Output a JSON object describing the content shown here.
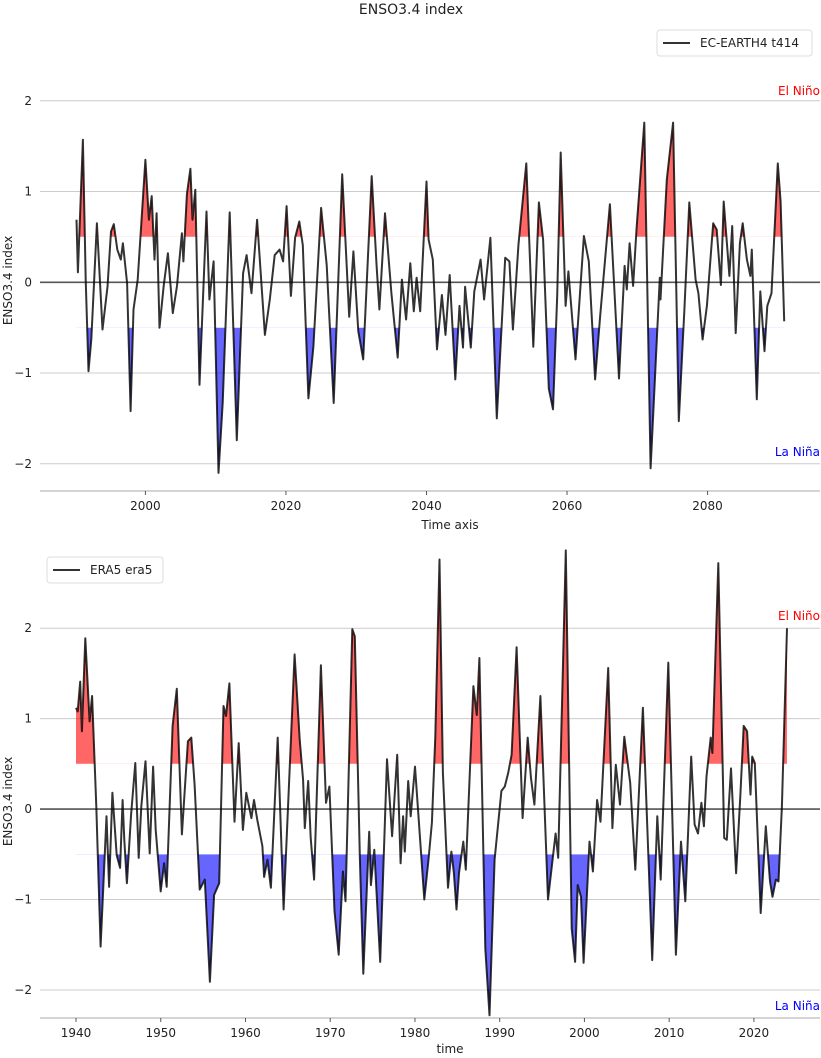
{
  "title": "ENSO3.4 index",
  "threshold_colors": {
    "el_nino": "#ff0000",
    "la_nina": "#0000ff",
    "line": "#333333",
    "zero_line": "#555555",
    "grid": "#cccccc"
  },
  "chart_data": [
    {
      "type": "line",
      "fill_between": {
        "upper_threshold": 0.5,
        "lower_threshold": -0.5
      },
      "xlabel": "Time axis",
      "ylabel": "ENSO3.4 index",
      "xlim": [
        1985,
        2096
      ],
      "ylim": [
        -2.3,
        2.78
      ],
      "xticks": [
        2000,
        2020,
        2040,
        2060,
        2080
      ],
      "yticks": [
        -2,
        -1,
        0,
        1,
        2
      ],
      "yticklabels": [
        "−2",
        "−1",
        "0",
        "1",
        "2"
      ],
      "grid": true,
      "legend": "top-right",
      "annotations": {
        "el_nino": "El Niño",
        "la_nina": "La Niña"
      },
      "series": [
        {
          "name": "EC-EARTH4 t414",
          "x": [
            1990.2,
            1990.4,
            1991.1,
            1991.5,
            1991.9,
            1992.3,
            1993.1,
            1993.9,
            1994.6,
            1995.1,
            1995.5,
            1996.0,
            1996.5,
            1996.8,
            1997.4,
            1997.9,
            1998.3,
            1998.9,
            2000.0,
            2000.5,
            2000.9,
            2001.3,
            2001.6,
            2002.0,
            2002.6,
            2003.2,
            2003.9,
            2004.5,
            2005.2,
            2005.4,
            2005.9,
            2006.4,
            2006.7,
            2007.1,
            2007.7,
            2008.7,
            2009.1,
            2009.7,
            2010.4,
            2011.0,
            2012.0,
            2013.0,
            2013.9,
            2014.4,
            2015.1,
            2015.9,
            2017.0,
            2017.7,
            2018.4,
            2019.1,
            2019.6,
            2020.1,
            2020.7,
            2021.3,
            2021.9,
            2022.4,
            2023.2,
            2023.9,
            2025.0,
            2025.8,
            2026.8,
            2028.0,
            2029.0,
            2029.6,
            2030.3,
            2031.0,
            2032.2,
            2032.9,
            2033.3,
            2034.1,
            2035.0,
            2035.9,
            2036.5,
            2037.1,
            2037.7,
            2038.2,
            2038.6,
            2039.1,
            2040.0,
            2040.3,
            2040.9,
            2041.5,
            2042.2,
            2042.7,
            2043.3,
            2044.1,
            2044.7,
            2045.2,
            2045.5,
            2046.3,
            2046.8,
            2047.7,
            2048.2,
            2049.1,
            2050.0,
            2051.2,
            2051.8,
            2052.3,
            2053.1,
            2054.2,
            2055.2,
            2056.0,
            2056.6,
            2057.4,
            2058.0,
            2058.6,
            2059.1,
            2059.8,
            2060.2,
            2061.2,
            2062.4,
            2063.1,
            2064.0,
            2064.7,
            2066.1,
            2067.4,
            2068.2,
            2068.5,
            2068.9,
            2069.4,
            2069.9,
            2071.0,
            2071.9,
            2073.2,
            2073.3,
            2074.2,
            2075.1,
            2075.9,
            2076.7,
            2077.4,
            2078.3,
            2078.7,
            2079.3,
            2079.9,
            2080.8,
            2081.3,
            2081.9,
            2082.3,
            2083.1,
            2083.5,
            2084.0,
            2084.6,
            2085.0,
            2085.6,
            2086.1,
            2086.3,
            2087.0,
            2087.5,
            2088.1,
            2088.5,
            2089.1,
            2090.0,
            2090.4,
            2090.9
          ],
          "y": [
            0.69,
            0.11,
            1.57,
            0.03,
            -0.98,
            -0.63,
            0.65,
            -0.52,
            -0.05,
            0.56,
            0.64,
            0.36,
            0.25,
            0.43,
            -0.01,
            -1.42,
            -0.3,
            0.03,
            1.35,
            0.69,
            0.95,
            0.25,
            0.76,
            -0.5,
            -0.04,
            0.32,
            -0.34,
            -0.04,
            0.54,
            0.23,
            0.97,
            1.25,
            0.69,
            1.02,
            -1.13,
            0.78,
            -0.19,
            0.23,
            -2.1,
            -1.33,
            0.77,
            -1.74,
            0.1,
            0.3,
            -0.12,
            0.69,
            -0.58,
            -0.19,
            0.3,
            0.36,
            0.23,
            0.84,
            -0.15,
            0.49,
            0.67,
            0.41,
            -1.28,
            -0.71,
            0.82,
            0.19,
            -1.33,
            1.19,
            -0.38,
            0.34,
            -0.54,
            -0.85,
            1.17,
            0.18,
            -0.3,
            0.76,
            -0.12,
            -0.83,
            0.03,
            -0.41,
            0.21,
            -0.32,
            0.05,
            -0.32,
            1.11,
            0.47,
            0.25,
            -0.74,
            -0.14,
            -0.58,
            0.08,
            -1.07,
            -0.26,
            -0.72,
            -0.05,
            -0.72,
            -0.1,
            0.25,
            -0.19,
            0.49,
            -1.5,
            0.27,
            0.23,
            -0.52,
            0.42,
            1.31,
            -0.71,
            0.88,
            0.47,
            -1.17,
            -1.4,
            -0.15,
            1.43,
            -0.26,
            0.12,
            -0.85,
            0.51,
            0.23,
            -1.07,
            -0.38,
            0.86,
            -1.06,
            0.18,
            -0.08,
            0.43,
            -0.04,
            0.6,
            1.76,
            -2.05,
            0.05,
            -0.19,
            1.13,
            1.76,
            -1.53,
            -0.3,
            0.88,
            0.03,
            -0.12,
            -0.63,
            -0.26,
            0.65,
            0.58,
            -0.03,
            0.89,
            0.07,
            0.62,
            -0.56,
            0.43,
            0.65,
            0.25,
            0.07,
            0.36,
            -1.29,
            -0.1,
            -0.76,
            -0.26,
            -0.12,
            1.31,
            0.89,
            -0.43
          ]
        }
      ]
    },
    {
      "type": "line",
      "fill_between": {
        "upper_threshold": 0.5,
        "lower_threshold": -0.5
      },
      "xlabel": "time",
      "ylabel": "ENSO3.4 index",
      "xlim": [
        1935.75,
        2027.8
      ],
      "ylim": [
        -2.31,
        2.92
      ],
      "xticks": [
        1940,
        1950,
        1960,
        1970,
        1980,
        1990,
        2000,
        2010,
        2020
      ],
      "yticks": [
        -2,
        -1,
        0,
        1,
        2
      ],
      "yticklabels": [
        "−2",
        "−1",
        "0",
        "1",
        "2"
      ],
      "grid": true,
      "legend": "top-left",
      "annotations": {
        "el_nino": "El Niño",
        "la_nina": "La Niña"
      },
      "series": [
        {
          "name": "ERA5 era5",
          "x": [
            1940.0,
            1940.2,
            1940.5,
            1940.7,
            1941.1,
            1941.6,
            1941.9,
            1942.4,
            1942.9,
            1943.6,
            1943.9,
            1944.3,
            1944.8,
            1945.2,
            1945.5,
            1945.7,
            1946.0,
            1946.5,
            1947.0,
            1947.4,
            1947.7,
            1948.2,
            1948.7,
            1949.1,
            1949.4,
            1950.0,
            1950.4,
            1950.7,
            1951.4,
            1951.9,
            1952.5,
            1953.2,
            1953.6,
            1954.0,
            1954.6,
            1955.2,
            1955.8,
            1956.3,
            1956.9,
            1957.4,
            1957.7,
            1958.1,
            1958.7,
            1959.2,
            1959.7,
            1960.1,
            1960.7,
            1961.0,
            1961.4,
            1962.0,
            1962.2,
            1962.6,
            1963.0,
            1963.8,
            1964.5,
            1965.8,
            1966.4,
            1966.8,
            1967.0,
            1967.4,
            1967.7,
            1968.1,
            1968.9,
            1969.5,
            1969.9,
            1970.5,
            1971.0,
            1971.5,
            1971.8,
            1972.6,
            1972.9,
            1973.5,
            1973.9,
            1974.6,
            1974.8,
            1975.2,
            1975.9,
            1976.7,
            1977.3,
            1977.9,
            1978.3,
            1978.6,
            1978.8,
            1979.2,
            1979.5,
            1980.0,
            1980.6,
            1981.1,
            1981.6,
            1982.0,
            1982.4,
            1982.9,
            1983.3,
            1983.9,
            1984.3,
            1984.6,
            1984.9,
            1985.2,
            1985.7,
            1986.0,
            1986.9,
            1987.3,
            1987.6,
            1988.3,
            1988.8,
            1989.4,
            1990.2,
            1990.6,
            1991.0,
            1991.4,
            1992.0,
            1992.7,
            1993.3,
            1993.7,
            1994.1,
            1994.8,
            1995.7,
            1996.6,
            1996.9,
            1997.8,
            1998.5,
            1998.9,
            1999.2,
            1999.6,
            1999.9,
            2000.6,
            2001.0,
            2001.5,
            2001.9,
            2002.8,
            2003.3,
            2003.7,
            2004.2,
            2004.7,
            2005.4,
            2006.0,
            2006.9,
            2008.0,
            2008.6,
            2009.0,
            2009.9,
            2010.8,
            2011.4,
            2011.9,
            2012.6,
            2013.0,
            2013.4,
            2013.8,
            2014.1,
            2014.4,
            2014.9,
            2015.1,
            2015.8,
            2016.5,
            2016.8,
            2017.3,
            2017.9,
            2018.4,
            2018.8,
            2019.2,
            2019.6,
            2019.8,
            2020.1,
            2020.8,
            2021.4,
            2021.9,
            2022.2,
            2022.6,
            2022.9,
            2023.3,
            2023.9
          ],
          "y": [
            1.12,
            1.08,
            1.41,
            0.86,
            1.89,
            0.97,
            1.25,
            0.03,
            -1.52,
            -0.08,
            -0.86,
            0.18,
            -0.51,
            -0.65,
            0.1,
            -0.34,
            -0.82,
            -0.06,
            0.51,
            -0.54,
            0.03,
            0.53,
            -0.49,
            0.47,
            -0.23,
            -0.91,
            -0.6,
            -0.86,
            0.92,
            1.33,
            -0.28,
            0.75,
            0.79,
            0.27,
            -0.89,
            -0.78,
            -1.91,
            -0.95,
            -0.82,
            1.14,
            1.03,
            1.39,
            -0.14,
            0.73,
            -0.23,
            0.18,
            -0.1,
            0.1,
            -0.12,
            -0.41,
            -0.75,
            -0.56,
            -0.87,
            0.79,
            -1.11,
            1.71,
            0.77,
            0.32,
            -0.21,
            0.31,
            -0.32,
            -0.78,
            1.59,
            0.07,
            0.25,
            -1.13,
            -1.61,
            -0.69,
            -1.02,
            1.99,
            1.91,
            -0.56,
            -1.82,
            -0.25,
            -0.84,
            -0.45,
            -1.69,
            0.55,
            -0.3,
            0.6,
            -0.6,
            -0.08,
            -0.47,
            0.31,
            -0.08,
            0.47,
            -0.32,
            -1.0,
            -0.56,
            -0.15,
            0.8,
            2.76,
            0.4,
            -0.87,
            -0.47,
            -0.71,
            -1.11,
            -0.71,
            -0.36,
            -0.67,
            1.36,
            1.04,
            1.67,
            -1.54,
            -2.28,
            -0.56,
            0.2,
            0.25,
            0.4,
            0.6,
            1.79,
            -0.1,
            0.79,
            0.34,
            0.05,
            1.25,
            -1.0,
            -0.27,
            -0.54,
            2.86,
            -1.32,
            -1.69,
            -0.84,
            -0.97,
            -1.7,
            -0.36,
            -0.69,
            0.1,
            -0.14,
            1.56,
            -0.21,
            0.49,
            0.05,
            0.8,
            0.29,
            -0.67,
            1.12,
            -1.67,
            -0.08,
            -0.78,
            1.62,
            -1.61,
            -0.36,
            -1.02,
            0.58,
            -0.17,
            -0.27,
            0.07,
            -0.19,
            0.36,
            0.79,
            0.62,
            2.72,
            -0.32,
            -0.34,
            0.45,
            -0.71,
            0.14,
            0.92,
            0.86,
            0.16,
            0.58,
            0.51,
            -1.15,
            -0.19,
            -0.8,
            -0.97,
            -0.78,
            -0.8,
            0.03,
            2.0
          ]
        }
      ]
    }
  ]
}
